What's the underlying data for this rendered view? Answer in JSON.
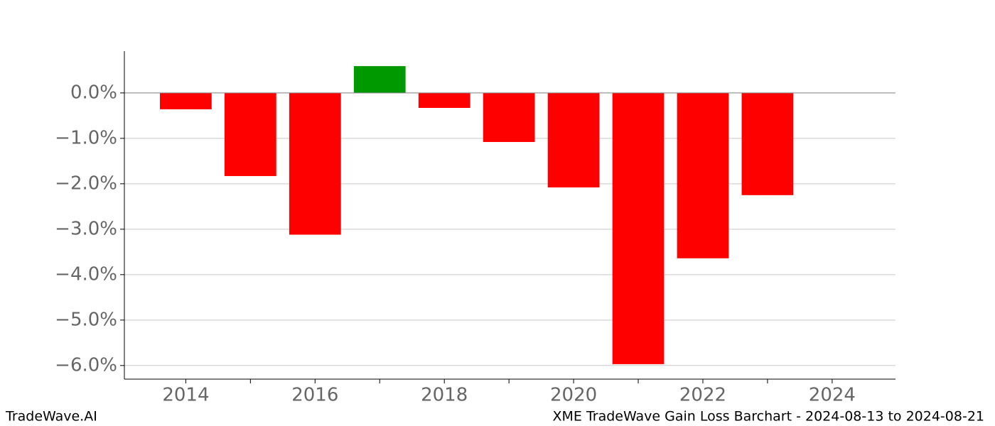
{
  "chart_data": {
    "type": "bar",
    "x": [
      2014,
      2015,
      2016,
      2017,
      2018,
      2019,
      2020,
      2021,
      2022,
      2023
    ],
    "values": [
      -0.36,
      -1.83,
      -3.12,
      0.59,
      -0.33,
      -1.08,
      -2.08,
      -5.97,
      -3.64,
      -2.25
    ],
    "positive_color": "#009900",
    "negative_color": "#ff0000",
    "xlim": [
      2013.05,
      2024.98
    ],
    "xticks": [
      2014,
      2016,
      2018,
      2020,
      2022,
      2024
    ],
    "xminorticks": [
      2015,
      2017,
      2019,
      2021,
      2023
    ],
    "ylim": [
      -6.3,
      0.92
    ],
    "yticks": [
      {
        "value": 0,
        "label": "0.0%"
      },
      {
        "value": -1,
        "label": "−1.0%"
      },
      {
        "value": -2,
        "label": "−2.0%"
      },
      {
        "value": -3,
        "label": "−3.0%"
      },
      {
        "value": -4,
        "label": "−4.0%"
      },
      {
        "value": -5,
        "label": "−5.0%"
      },
      {
        "value": -6,
        "label": "−6.0%"
      }
    ],
    "grid": true
  },
  "footer": {
    "left": "TradeWave.AI",
    "right": "XME TradeWave Gain Loss Barchart - 2024-08-13 to 2024-08-21"
  }
}
